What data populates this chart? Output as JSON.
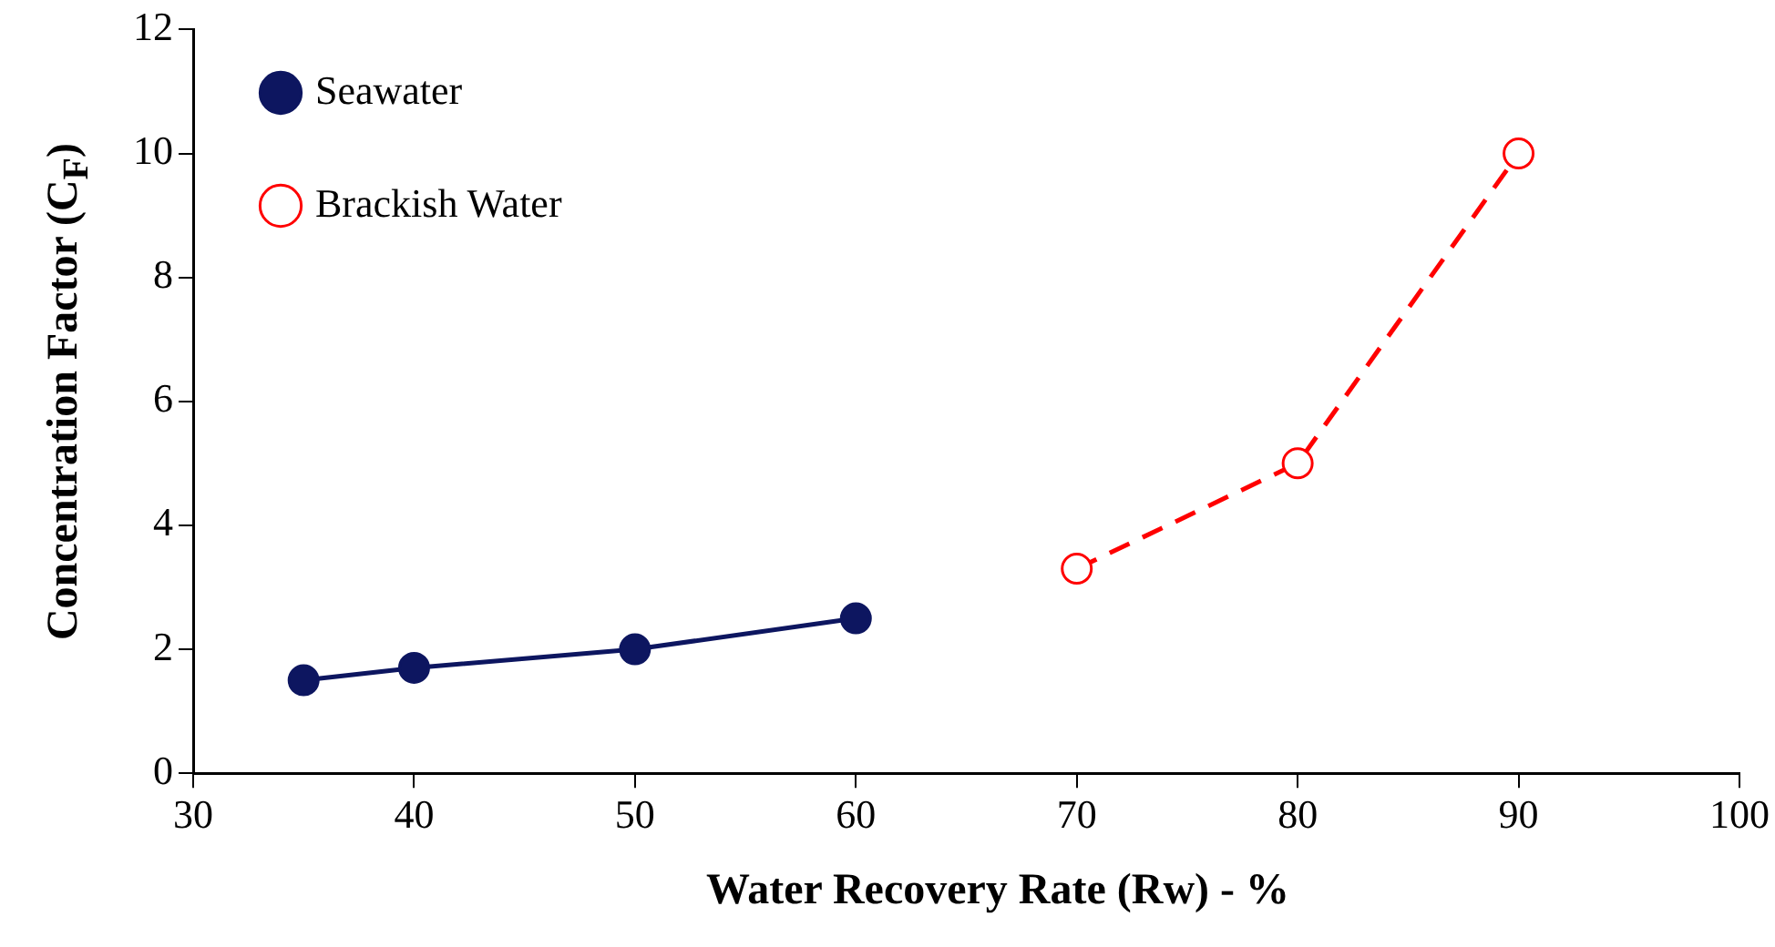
{
  "chart_data": {
    "type": "line",
    "xlabel": "Water Recovery Rate ($_{}$Rw) - %",
    "ylabel": "Concentration Factor (C$_{F}$)",
    "xlim": [
      30,
      100
    ],
    "xticks": [
      30,
      40,
      50,
      60,
      70,
      80,
      90,
      100
    ],
    "ylim": [
      0,
      12
    ],
    "yticks": [
      0,
      2,
      4,
      6,
      8,
      10,
      12
    ],
    "grid": false,
    "legend": "top left",
    "marker": "circle",
    "series": [
      {
        "name": "Seawater",
        "color": "#0d1660",
        "line_style": "solid",
        "x": [
          35,
          40,
          50,
          60
        ],
        "values": [
          1.5,
          1.7,
          2,
          2.5
        ]
      },
      {
        "name": "Brackish Water",
        "color": "#ff0000",
        "line_style": "dashed",
        "x": [
          70,
          80,
          90
        ],
        "values": [
          3.3,
          5,
          10
        ]
      }
    ]
  }
}
